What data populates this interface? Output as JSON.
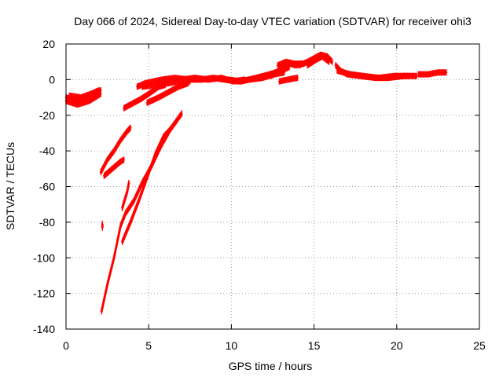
{
  "chart_data": {
    "type": "scatter",
    "title": "Day 066 of 2024, Sidereal Day-to-day VTEC variation (SDTVAR) for receiver ohi3",
    "xlabel": "GPS time / hours",
    "ylabel": "SDTVAR / TECUs",
    "xlim": [
      0,
      25
    ],
    "ylim": [
      -140,
      20
    ],
    "xticks": [
      0,
      5,
      10,
      15,
      20,
      25
    ],
    "yticks": [
      -140,
      -120,
      -100,
      -80,
      -60,
      -40,
      -20,
      0,
      20
    ],
    "grid": true,
    "series_color": "#ff0000",
    "tracks": [
      [
        [
          0.0,
          -10
        ],
        [
          0.6,
          -12
        ],
        [
          1.2,
          -10
        ],
        [
          1.8,
          -9
        ],
        [
          2.1,
          -6
        ]
      ],
      [
        [
          0.0,
          -12
        ],
        [
          0.7,
          -14
        ],
        [
          1.4,
          -12
        ],
        [
          2.1,
          -8
        ]
      ],
      [
        [
          0.2,
          -9
        ],
        [
          0.9,
          -10
        ],
        [
          1.5,
          -8
        ],
        [
          2.0,
          -6
        ]
      ],
      [
        [
          2.1,
          -52
        ],
        [
          2.5,
          -45
        ],
        [
          2.9,
          -40
        ],
        [
          3.3,
          -34
        ],
        [
          3.7,
          -29
        ],
        [
          3.9,
          -27
        ]
      ],
      [
        [
          2.3,
          -54
        ],
        [
          2.8,
          -50
        ],
        [
          3.3,
          -46
        ],
        [
          3.5,
          -45
        ]
      ],
      [
        [
          2.2,
          -81
        ],
        [
          2.2,
          -83
        ]
      ],
      [
        [
          2.15,
          -130
        ],
        [
          2.5,
          -115
        ],
        [
          2.9,
          -100
        ],
        [
          3.3,
          -82
        ],
        [
          3.6,
          -75
        ],
        [
          4.1,
          -68
        ],
        [
          4.6,
          -58
        ],
        [
          5.2,
          -48
        ],
        [
          5.7,
          -38
        ],
        [
          6.3,
          -28
        ],
        [
          7.0,
          -19
        ]
      ],
      [
        [
          3.4,
          -91
        ],
        [
          3.9,
          -80
        ],
        [
          4.4,
          -68
        ],
        [
          4.9,
          -55
        ],
        [
          5.4,
          -42
        ],
        [
          5.9,
          -32
        ],
        [
          6.3,
          -28
        ]
      ],
      [
        [
          3.4,
          -72
        ],
        [
          3.7,
          -63
        ],
        [
          3.8,
          -58
        ]
      ],
      [
        [
          3.5,
          -16
        ],
        [
          4.1,
          -13
        ],
        [
          4.5,
          -11
        ],
        [
          5.0,
          -8
        ],
        [
          5.6,
          -4
        ],
        [
          6.0,
          -3
        ]
      ],
      [
        [
          4.3,
          -4
        ],
        [
          4.8,
          -2
        ],
        [
          5.3,
          -1
        ],
        [
          5.8,
          0
        ],
        [
          6.6,
          1
        ],
        [
          7.4,
          0
        ],
        [
          8.2,
          0
        ],
        [
          8.9,
          1
        ],
        [
          9.6,
          0
        ],
        [
          10.4,
          -1
        ],
        [
          11.1,
          0
        ],
        [
          11.9,
          1
        ],
        [
          12.6,
          3
        ],
        [
          13.2,
          4
        ]
      ],
      [
        [
          4.6,
          -4
        ],
        [
          5.4,
          -3
        ],
        [
          6.2,
          -2
        ],
        [
          6.8,
          -1
        ],
        [
          7.5,
          -1
        ]
      ],
      [
        [
          4.9,
          -13
        ],
        [
          5.6,
          -10
        ],
        [
          6.2,
          -7
        ],
        [
          6.8,
          -4
        ],
        [
          7.4,
          -2
        ]
      ],
      [
        [
          7.0,
          0
        ],
        [
          7.8,
          1
        ],
        [
          8.6,
          0
        ],
        [
          9.4,
          1
        ],
        [
          10.1,
          -1
        ],
        [
          10.8,
          0
        ]
      ],
      [
        [
          9.8,
          0
        ],
        [
          10.6,
          -1
        ],
        [
          11.5,
          1
        ],
        [
          12.3,
          3
        ],
        [
          13.0,
          5
        ],
        [
          13.5,
          7
        ]
      ],
      [
        [
          12.4,
          2
        ],
        [
          12.9,
          5
        ],
        [
          13.2,
          7
        ],
        [
          13.5,
          9
        ],
        [
          13.9,
          8
        ],
        [
          14.4,
          9
        ]
      ],
      [
        [
          12.8,
          8
        ],
        [
          13.3,
          10
        ],
        [
          13.8,
          9
        ],
        [
          14.3,
          9
        ]
      ],
      [
        [
          12.9,
          -1
        ],
        [
          13.4,
          0
        ],
        [
          14.0,
          1
        ]
      ],
      [
        [
          14.1,
          8
        ],
        [
          14.6,
          10
        ],
        [
          15.0,
          12
        ],
        [
          15.4,
          14
        ],
        [
          15.8,
          13
        ],
        [
          16.1,
          10
        ]
      ],
      [
        [
          14.6,
          8
        ],
        [
          15.1,
          11
        ],
        [
          15.5,
          13
        ],
        [
          15.9,
          10
        ]
      ],
      [
        [
          16.3,
          8
        ],
        [
          16.6,
          5
        ],
        [
          17.0,
          3
        ],
        [
          17.8,
          2
        ],
        [
          18.7,
          1
        ],
        [
          19.5,
          1
        ],
        [
          20.4,
          2
        ],
        [
          21.2,
          2
        ]
      ],
      [
        [
          16.4,
          5
        ],
        [
          17.2,
          3
        ],
        [
          18.0,
          2
        ],
        [
          18.9,
          1
        ],
        [
          19.8,
          2
        ],
        [
          20.7,
          2
        ]
      ],
      [
        [
          21.3,
          3
        ],
        [
          21.9,
          3
        ],
        [
          22.5,
          4
        ],
        [
          23.0,
          4
        ]
      ]
    ]
  }
}
